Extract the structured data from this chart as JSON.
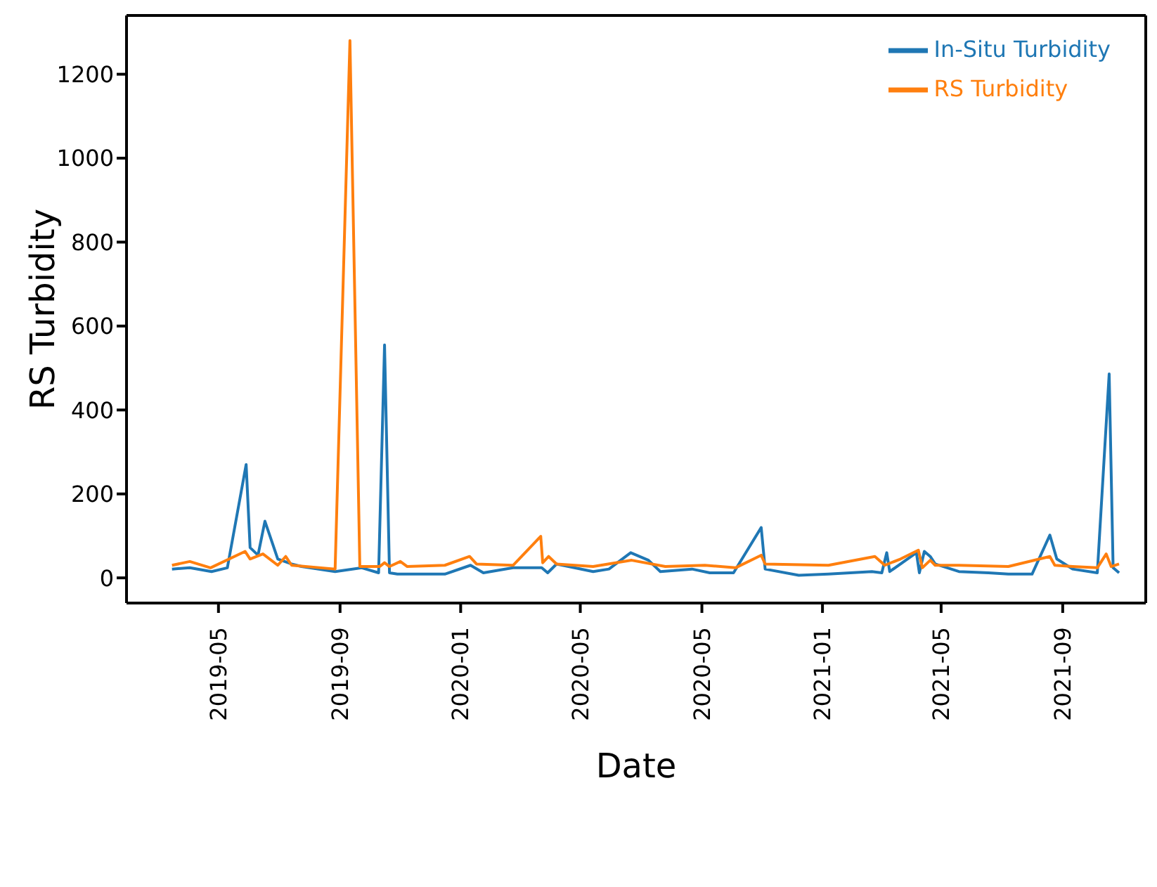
{
  "chart_data": {
    "type": "line",
    "xlabel": "Date",
    "ylabel": "RS Turbidity",
    "xlim": [
      "2019-01-28",
      "2021-11-24"
    ],
    "ylim": [
      -60,
      1340
    ],
    "xticks": [
      "2019-05",
      "2019-09",
      "2020-01",
      "2020-05",
      {
        "value": "2020-09",
        "label": "2020-05"
      },
      "2021-01",
      "2021-05",
      "2021-09"
    ],
    "yticks": [
      0,
      200,
      400,
      600,
      800,
      1000,
      1200
    ],
    "grid": false,
    "legend": "top right",
    "line_style": "solid",
    "marker": "none",
    "series": [
      {
        "name": "In-Situ Turbidity",
        "color": "#1f77b4",
        "x": [
          "2019-03-15",
          "2019-04-02",
          "2019-04-24",
          "2019-05-10",
          "2019-05-29",
          "2019-06-02",
          "2019-06-10",
          "2019-06-17",
          "2019-06-30",
          "2019-07-14",
          "2019-07-24",
          "2019-08-27",
          "2019-09-23",
          "2019-10-10",
          "2019-10-16",
          "2019-10-21",
          "2019-10-29",
          "2019-12-16",
          "2020-01-11",
          "2020-01-24",
          "2020-02-23",
          "2020-03-23",
          "2020-03-29",
          "2020-04-07",
          "2020-05-14",
          "2020-05-30",
          "2020-06-21",
          "2020-07-09",
          "2020-07-21",
          "2020-08-22",
          "2020-09-09",
          "2020-10-03",
          "2020-10-31",
          "2020-11-04",
          "2020-12-08",
          "2021-01-07",
          "2021-02-20",
          "2021-03-02",
          "2021-03-07",
          "2021-03-10",
          "2021-04-06",
          "2021-04-09",
          "2021-04-14",
          "2021-04-20",
          "2021-04-25",
          "2021-05-19",
          "2021-06-18",
          "2021-07-08",
          "2021-08-01",
          "2021-08-19",
          "2021-08-26",
          "2021-09-11",
          "2021-10-06",
          "2021-10-18",
          "2021-10-22",
          "2021-10-28"
        ],
        "values": [
          21,
          24,
          15,
          24,
          270,
          72,
          54,
          135,
          45,
          33,
          27,
          15,
          24,
          12,
          555,
          12,
          9,
          9,
          30,
          12,
          24,
          24,
          12,
          33,
          15,
          21,
          60,
          42,
          15,
          21,
          12,
          12,
          120,
          21,
          6,
          9,
          15,
          12,
          60,
          15,
          60,
          12,
          63,
          51,
          33,
          15,
          12,
          9,
          9,
          102,
          45,
          21,
          12,
          486,
          24,
          12
        ]
      },
      {
        "name": "RS Turbidity",
        "color": "#ff7f0e",
        "x": [
          "2019-03-15",
          "2019-04-02",
          "2019-04-23",
          "2019-05-28",
          "2019-06-02",
          "2019-06-15",
          "2019-06-30",
          "2019-07-08",
          "2019-07-14",
          "2019-08-27",
          "2019-09-11",
          "2019-09-21",
          "2019-10-11",
          "2019-10-16",
          "2019-10-21",
          "2019-11-01",
          "2019-11-08",
          "2019-12-16",
          "2020-01-10",
          "2020-01-17",
          "2020-02-23",
          "2020-03-22",
          "2020-03-24",
          "2020-03-30",
          "2020-04-07",
          "2020-05-14",
          "2020-06-22",
          "2020-07-26",
          "2020-09-04",
          "2020-10-05",
          "2020-10-31",
          "2020-11-04",
          "2021-01-07",
          "2021-02-23",
          "2021-03-05",
          "2021-03-21",
          "2021-04-08",
          "2021-04-12",
          "2021-04-20",
          "2021-04-25",
          "2021-05-19",
          "2021-07-08",
          "2021-08-19",
          "2021-08-24",
          "2021-09-11",
          "2021-10-06",
          "2021-10-15",
          "2021-10-20",
          "2021-10-28"
        ],
        "values": [
          30,
          39,
          24,
          63,
          45,
          57,
          30,
          51,
          30,
          21,
          1280,
          27,
          27,
          36,
          27,
          39,
          27,
          30,
          51,
          33,
          30,
          99,
          36,
          51,
          33,
          27,
          42,
          27,
          30,
          24,
          54,
          33,
          30,
          51,
          30,
          45,
          66,
          24,
          42,
          30,
          30,
          27,
          51,
          30,
          27,
          24,
          57,
          27,
          33
        ]
      }
    ]
  }
}
